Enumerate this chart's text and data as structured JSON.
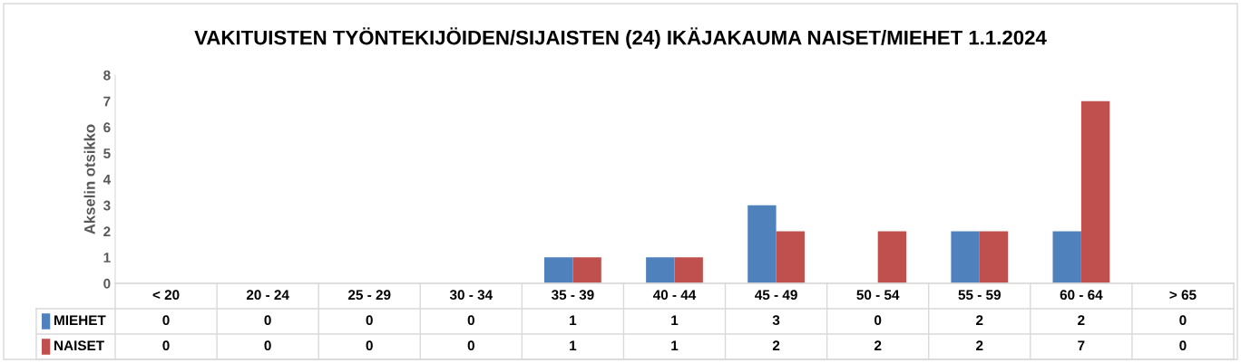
{
  "chart_data": {
    "type": "bar",
    "title": "VAKITUISTEN TYÖNTEKIJÖIDEN/SIJAISTEN (24) IKÄJAKAUMA NAISET/MIEHET 1.1.2024",
    "ylabel": "Akselin otsikko",
    "categories": [
      "< 20",
      "20 - 24",
      "25 - 29",
      "30 - 34",
      "35 - 39",
      "40 - 44",
      "45 - 49",
      "50 - 54",
      "55 - 59",
      "60 - 64",
      "> 65"
    ],
    "series": [
      {
        "name": "MIEHET",
        "color": "#4f81bd",
        "values": [
          0,
          0,
          0,
          0,
          1,
          1,
          3,
          0,
          2,
          2,
          0
        ]
      },
      {
        "name": "NAISET",
        "color": "#c0504d",
        "values": [
          0,
          0,
          0,
          0,
          1,
          1,
          2,
          2,
          2,
          7,
          0
        ]
      }
    ],
    "ylim": [
      0,
      8
    ],
    "yticks": [
      0,
      1,
      2,
      3,
      4,
      5,
      6,
      7,
      8
    ],
    "grid": false,
    "legend": "bottom left",
    "data_labels": true
  }
}
